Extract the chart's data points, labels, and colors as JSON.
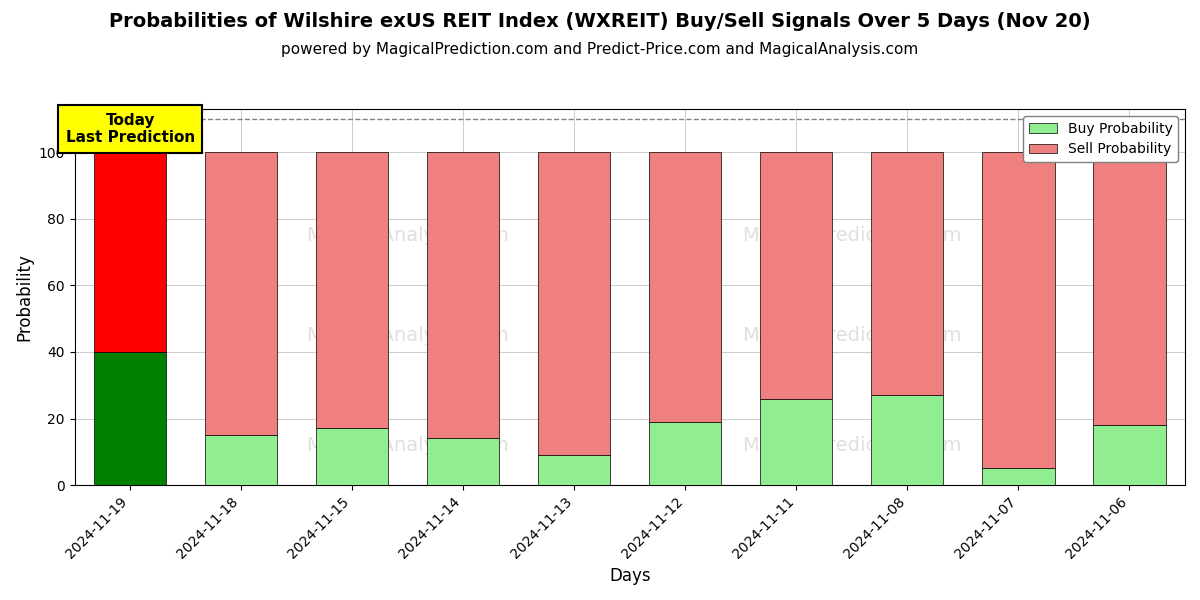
{
  "title": "Probabilities of Wilshire exUS REIT Index (WXREIT) Buy/Sell Signals Over 5 Days (Nov 20)",
  "subtitle": "powered by MagicalPrediction.com and Predict-Price.com and MagicalAnalysis.com",
  "xlabel": "Days",
  "ylabel": "Probability",
  "categories": [
    "2024-11-19",
    "2024-11-18",
    "2024-11-15",
    "2024-11-14",
    "2024-11-13",
    "2024-11-12",
    "2024-11-11",
    "2024-11-08",
    "2024-11-07",
    "2024-11-06"
  ],
  "buy_values": [
    40,
    15,
    17,
    14,
    9,
    19,
    26,
    27,
    5,
    18
  ],
  "sell_values": [
    60,
    85,
    83,
    86,
    91,
    81,
    74,
    73,
    95,
    82
  ],
  "today_bar_buy_color": "#008000",
  "today_bar_sell_color": "#ff0000",
  "other_bar_buy_color": "#90ee90",
  "other_bar_sell_color": "#f08080",
  "today_label": "Today\nLast Prediction",
  "today_label_bg": "#ffff00",
  "legend_buy_color": "#90ee90",
  "legend_sell_color": "#f08080",
  "ylim": [
    0,
    113
  ],
  "dashed_line_y": 110,
  "watermark_lines": [
    [
      "MagicalAnalysis.com",
      "MagicalPrediction.com"
    ],
    [
      "MagicalAnalysis.com",
      "MagicalPrediction.com"
    ]
  ],
  "background_color": "#ffffff",
  "grid_color": "#cccccc",
  "bar_edge_color": "#000000",
  "title_fontsize": 14,
  "subtitle_fontsize": 11,
  "bar_width": 0.65
}
